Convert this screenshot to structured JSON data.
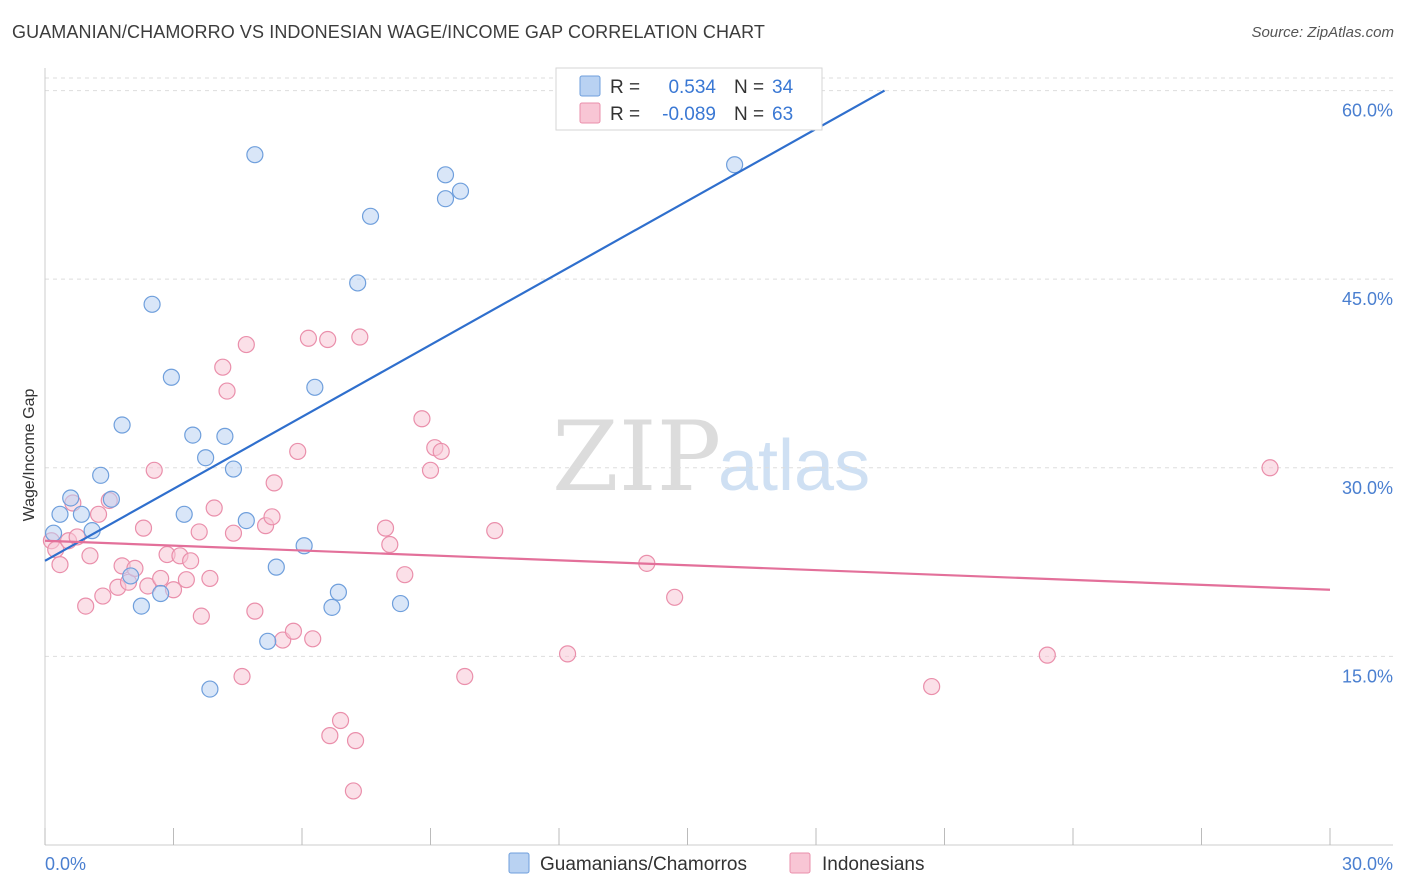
{
  "title": "GUAMANIAN/CHAMORRO VS INDONESIAN WAGE/INCOME GAP CORRELATION CHART",
  "source": "Source: ZipAtlas.com",
  "watermark": {
    "zip": "ZIP",
    "atlas": "atlas"
  },
  "colors": {
    "blue_fill": "#b9d2f2",
    "blue_stroke": "#6f9fdc",
    "blue_line": "#2f6fcd",
    "pink_fill": "#f8c6d5",
    "pink_stroke": "#ea8fab",
    "pink_line": "#e3709a",
    "grid": "#dddddd",
    "axis_text": "#4a7fd0"
  },
  "legend": {
    "rows": [
      {
        "r_label": "R =",
        "r_value": "0.534",
        "n_label": "N =",
        "n_value": "34"
      },
      {
        "r_label": "R =",
        "r_value": "-0.089",
        "n_label": "N =",
        "n_value": "63"
      }
    ]
  },
  "bottom_legend": [
    "Guamanians/Chamorros",
    "Indonesians"
  ],
  "chart_data": {
    "type": "scatter",
    "title": "GUAMANIAN/CHAMORRO VS INDONESIAN WAGE/INCOME GAP CORRELATION CHART",
    "xlabel": "",
    "ylabel": "Wage/Income Gap",
    "xlim": [
      0,
      30
    ],
    "ylim": [
      0,
      61
    ],
    "x_tick_labels": [
      "0.0%",
      "30.0%"
    ],
    "y_ticks": [
      15,
      30,
      45,
      60
    ],
    "y_tick_labels": [
      "15.0%",
      "30.0%",
      "45.0%",
      "60.0%"
    ],
    "series": [
      {
        "name": "Guamanians/Chamorros",
        "color": "#b9d2f2",
        "points": [
          [
            0.2,
            24.8
          ],
          [
            0.35,
            26.3
          ],
          [
            0.6,
            27.6
          ],
          [
            0.85,
            26.3
          ],
          [
            1.1,
            25.0
          ],
          [
            1.3,
            29.4
          ],
          [
            1.55,
            27.5
          ],
          [
            1.8,
            33.4
          ],
          [
            2.0,
            21.4
          ],
          [
            2.25,
            19.0
          ],
          [
            2.5,
            43.0
          ],
          [
            2.7,
            20.0
          ],
          [
            2.95,
            37.2
          ],
          [
            3.25,
            26.3
          ],
          [
            3.45,
            32.6
          ],
          [
            3.75,
            30.8
          ],
          [
            3.85,
            12.4
          ],
          [
            4.2,
            32.5
          ],
          [
            4.4,
            29.9
          ],
          [
            4.7,
            25.8
          ],
          [
            4.9,
            54.9
          ],
          [
            5.2,
            16.2
          ],
          [
            5.4,
            22.1
          ],
          [
            6.05,
            23.8
          ],
          [
            6.3,
            36.4
          ],
          [
            6.7,
            18.9
          ],
          [
            6.85,
            20.1
          ],
          [
            7.3,
            44.7
          ],
          [
            7.6,
            50.0
          ],
          [
            8.3,
            19.2
          ],
          [
            9.35,
            53.3
          ],
          [
            9.35,
            51.4
          ],
          [
            9.7,
            52.0
          ],
          [
            16.1,
            54.1
          ]
        ],
        "trend": {
          "x1": 0.0,
          "y1": 22.6,
          "x2": 19.6,
          "y2": 60.0
        }
      },
      {
        "name": "Indonesians",
        "color": "#f8c6d5",
        "points": [
          [
            0.15,
            24.2
          ],
          [
            0.25,
            23.5
          ],
          [
            0.35,
            22.3
          ],
          [
            0.55,
            24.2
          ],
          [
            0.65,
            27.2
          ],
          [
            0.75,
            24.5
          ],
          [
            0.95,
            19.0
          ],
          [
            1.05,
            23.0
          ],
          [
            1.25,
            26.3
          ],
          [
            1.35,
            19.8
          ],
          [
            1.5,
            27.4
          ],
          [
            1.7,
            20.5
          ],
          [
            1.8,
            22.2
          ],
          [
            1.95,
            20.9
          ],
          [
            2.1,
            22.0
          ],
          [
            2.3,
            25.2
          ],
          [
            2.4,
            20.6
          ],
          [
            2.55,
            29.8
          ],
          [
            2.7,
            21.2
          ],
          [
            2.85,
            23.1
          ],
          [
            3.0,
            20.3
          ],
          [
            3.15,
            23.0
          ],
          [
            3.3,
            21.1
          ],
          [
            3.4,
            22.6
          ],
          [
            3.6,
            24.9
          ],
          [
            3.65,
            18.2
          ],
          [
            3.85,
            21.2
          ],
          [
            3.95,
            26.8
          ],
          [
            4.15,
            38.0
          ],
          [
            4.25,
            36.1
          ],
          [
            4.4,
            24.8
          ],
          [
            4.6,
            13.4
          ],
          [
            4.7,
            39.8
          ],
          [
            4.9,
            18.6
          ],
          [
            5.15,
            25.4
          ],
          [
            5.3,
            26.1
          ],
          [
            5.35,
            28.8
          ],
          [
            5.55,
            16.3
          ],
          [
            5.8,
            17.0
          ],
          [
            5.9,
            31.3
          ],
          [
            6.15,
            40.3
          ],
          [
            6.25,
            16.4
          ],
          [
            6.6,
            40.2
          ],
          [
            6.65,
            8.7
          ],
          [
            6.9,
            9.9
          ],
          [
            7.2,
            4.3
          ],
          [
            7.25,
            8.3
          ],
          [
            7.35,
            40.4
          ],
          [
            7.95,
            25.2
          ],
          [
            8.05,
            23.9
          ],
          [
            8.4,
            21.5
          ],
          [
            8.8,
            33.9
          ],
          [
            9.0,
            29.8
          ],
          [
            9.1,
            31.6
          ],
          [
            9.25,
            31.3
          ],
          [
            9.8,
            13.4
          ],
          [
            10.5,
            25.0
          ],
          [
            12.2,
            15.2
          ],
          [
            14.05,
            22.4
          ],
          [
            14.7,
            19.7
          ],
          [
            20.7,
            12.6
          ],
          [
            23.4,
            15.1
          ],
          [
            28.6,
            30.0
          ]
        ],
        "trend": {
          "x1": 0.0,
          "y1": 24.2,
          "x2": 30.0,
          "y2": 20.3
        }
      }
    ]
  }
}
